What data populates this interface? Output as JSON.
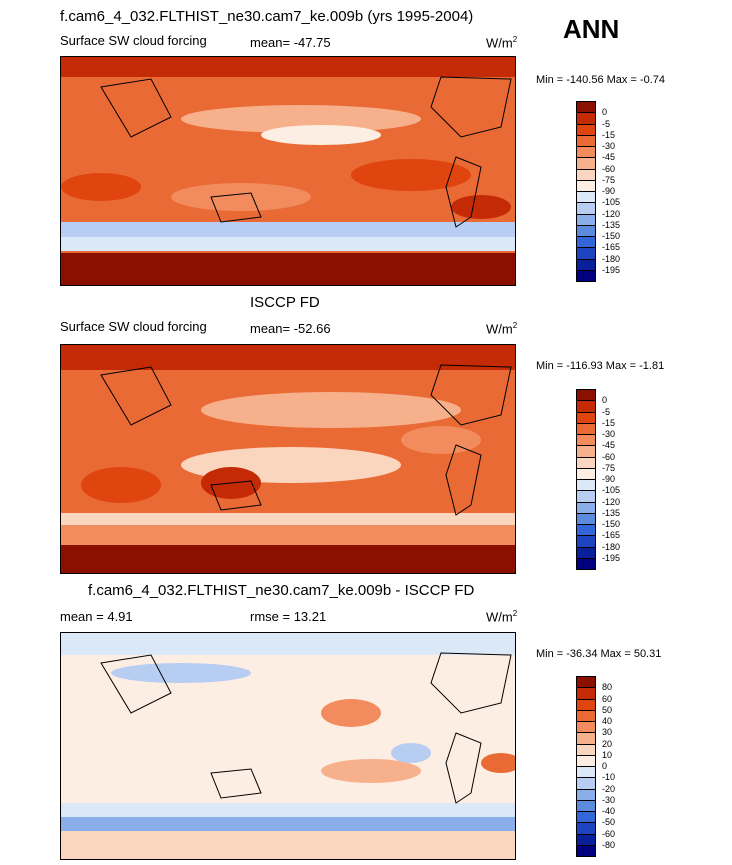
{
  "season": "ANN",
  "panels": [
    {
      "title": "f.cam6_4_032.FLTHIST_ne30.cam7_ke.009b (yrs 1995-2004)",
      "left_label": "Surface SW cloud forcing",
      "stat_label": "mean= -47.75",
      "units": "W/m",
      "units_sup": "2",
      "minmax": "Min = -140.56 Max =  -0.74",
      "colorbar": {
        "labels": [
          "0",
          "-5",
          "-15",
          "-30",
          "-45",
          "-60",
          "-75",
          "-90",
          "-105",
          "-120",
          "-135",
          "-150",
          "-165",
          "-180",
          "-195"
        ],
        "colors": [
          "#8b1000",
          "#c42a05",
          "#e0440f",
          "#ea6a35",
          "#f28c5f",
          "#f7b08c",
          "#fbd6be",
          "#fdeee3",
          "#dbe8f8",
          "#b7cdf2",
          "#8aaeea",
          "#5c8bde",
          "#3366d6",
          "#1f44bf",
          "#0a1f9a",
          "#000080"
        ]
      }
    },
    {
      "title": "ISCCP FD",
      "left_label": "Surface SW cloud forcing",
      "stat_label": "mean= -52.66",
      "units": "W/m",
      "units_sup": "2",
      "minmax": "Min = -116.93 Max =  -1.81",
      "colorbar": {
        "labels": [
          "0",
          "-5",
          "-15",
          "-30",
          "-45",
          "-60",
          "-75",
          "-90",
          "-105",
          "-120",
          "-135",
          "-150",
          "-165",
          "-180",
          "-195"
        ],
        "colors": [
          "#8b1000",
          "#c42a05",
          "#e0440f",
          "#ea6a35",
          "#f28c5f",
          "#f7b08c",
          "#fbd6be",
          "#fdeee3",
          "#dbe8f8",
          "#b7cdf2",
          "#8aaeea",
          "#5c8bde",
          "#3366d6",
          "#1f44bf",
          "#0a1f9a",
          "#000080"
        ]
      }
    },
    {
      "title": "f.cam6_4_032.FLTHIST_ne30.cam7_ke.009b - ISCCP FD",
      "left_label": "mean =   4.91",
      "stat_label": "rmse =  13.21",
      "units": "W/m",
      "units_sup": "2",
      "minmax": "Min = -36.34 Max =  50.31",
      "colorbar": {
        "labels": [
          "80",
          "60",
          "50",
          "40",
          "30",
          "20",
          "10",
          "0",
          "-10",
          "-20",
          "-30",
          "-40",
          "-50",
          "-60",
          "-80"
        ],
        "colors": [
          "#8b1000",
          "#c42a05",
          "#e0440f",
          "#ea6a35",
          "#f28c5f",
          "#f7b08c",
          "#fbd6be",
          "#fdeee3",
          "#dbe8f8",
          "#b7cdf2",
          "#8aaeea",
          "#5c8bde",
          "#3366d6",
          "#1f44bf",
          "#0a1f9a",
          "#000080"
        ]
      }
    }
  ]
}
